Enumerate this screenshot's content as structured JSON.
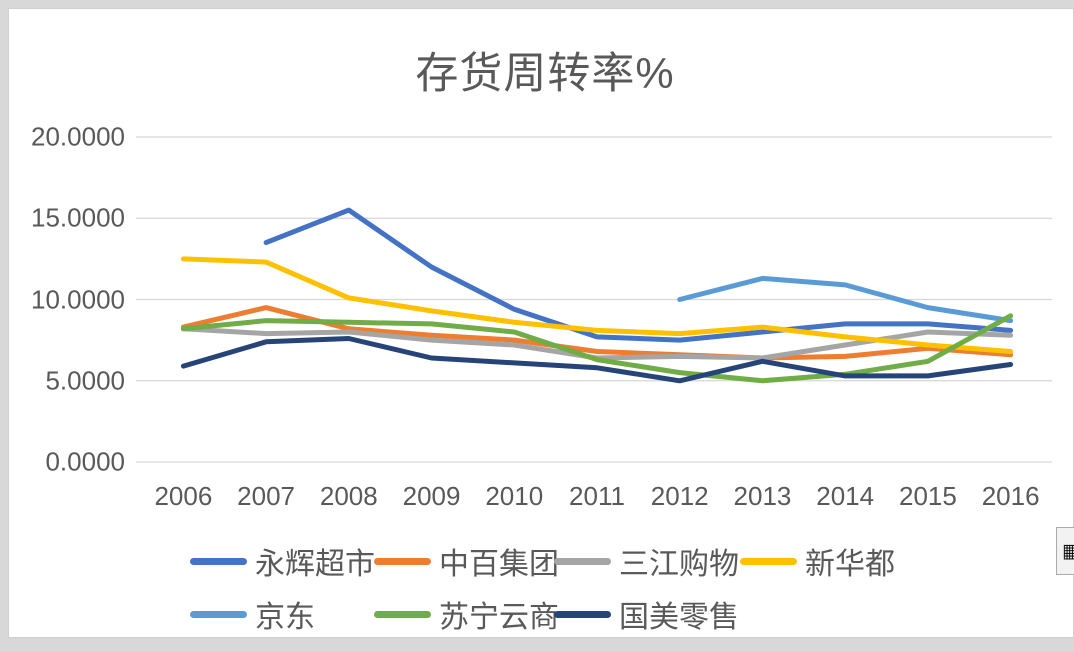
{
  "chart_data": {
    "type": "line",
    "title": "存货周转率%",
    "xlabel": "",
    "ylabel": "",
    "x": [
      "2006",
      "2007",
      "2008",
      "2009",
      "2010",
      "2011",
      "2012",
      "2013",
      "2014",
      "2015",
      "2016"
    ],
    "y_tick_labels": [
      "0.0000",
      "5.0000",
      "10.0000",
      "15.0000",
      "20.0000"
    ],
    "ylim": [
      0,
      20
    ],
    "grid": true,
    "legend_position": "bottom",
    "series": [
      {
        "name": "永辉超市",
        "color": "#4472C4",
        "values": [
          null,
          13.5,
          15.5,
          12.0,
          9.4,
          7.7,
          7.5,
          8.0,
          8.5,
          8.5,
          8.1
        ]
      },
      {
        "name": "中百集团",
        "color": "#ED7D31",
        "values": [
          8.3,
          9.5,
          8.2,
          7.8,
          7.5,
          6.8,
          6.6,
          6.4,
          6.5,
          7.0,
          6.6
        ]
      },
      {
        "name": "三江购物",
        "color": "#A5A5A5",
        "values": [
          8.2,
          7.9,
          8.0,
          7.5,
          7.2,
          6.4,
          6.5,
          6.4,
          7.2,
          8.0,
          7.8
        ]
      },
      {
        "name": "新华都",
        "color": "#FFC000",
        "values": [
          12.5,
          12.3,
          10.1,
          9.3,
          8.6,
          8.1,
          7.9,
          8.3,
          7.7,
          7.2,
          6.8
        ]
      },
      {
        "name": "京东",
        "color": "#5B9BD5",
        "values": [
          null,
          null,
          null,
          null,
          null,
          null,
          10.0,
          11.3,
          10.9,
          9.5,
          8.7
        ]
      },
      {
        "name": "苏宁云商",
        "color": "#70AD47",
        "values": [
          8.2,
          8.7,
          8.6,
          8.5,
          8.0,
          6.3,
          5.5,
          5.0,
          5.4,
          6.2,
          9.0
        ]
      },
      {
        "name": "国美零售",
        "color": "#264478",
        "values": [
          5.9,
          7.4,
          7.6,
          6.4,
          6.1,
          5.8,
          5.0,
          6.2,
          5.3,
          5.3,
          6.0
        ]
      }
    ]
  },
  "colors": {
    "background_margin": "#d8d8d8",
    "panel": "#ffffff",
    "gridline": "#d6d6d6",
    "text": "#595959"
  },
  "tools_button": {
    "icon": "chart-format-icon",
    "glyph": "▦"
  }
}
